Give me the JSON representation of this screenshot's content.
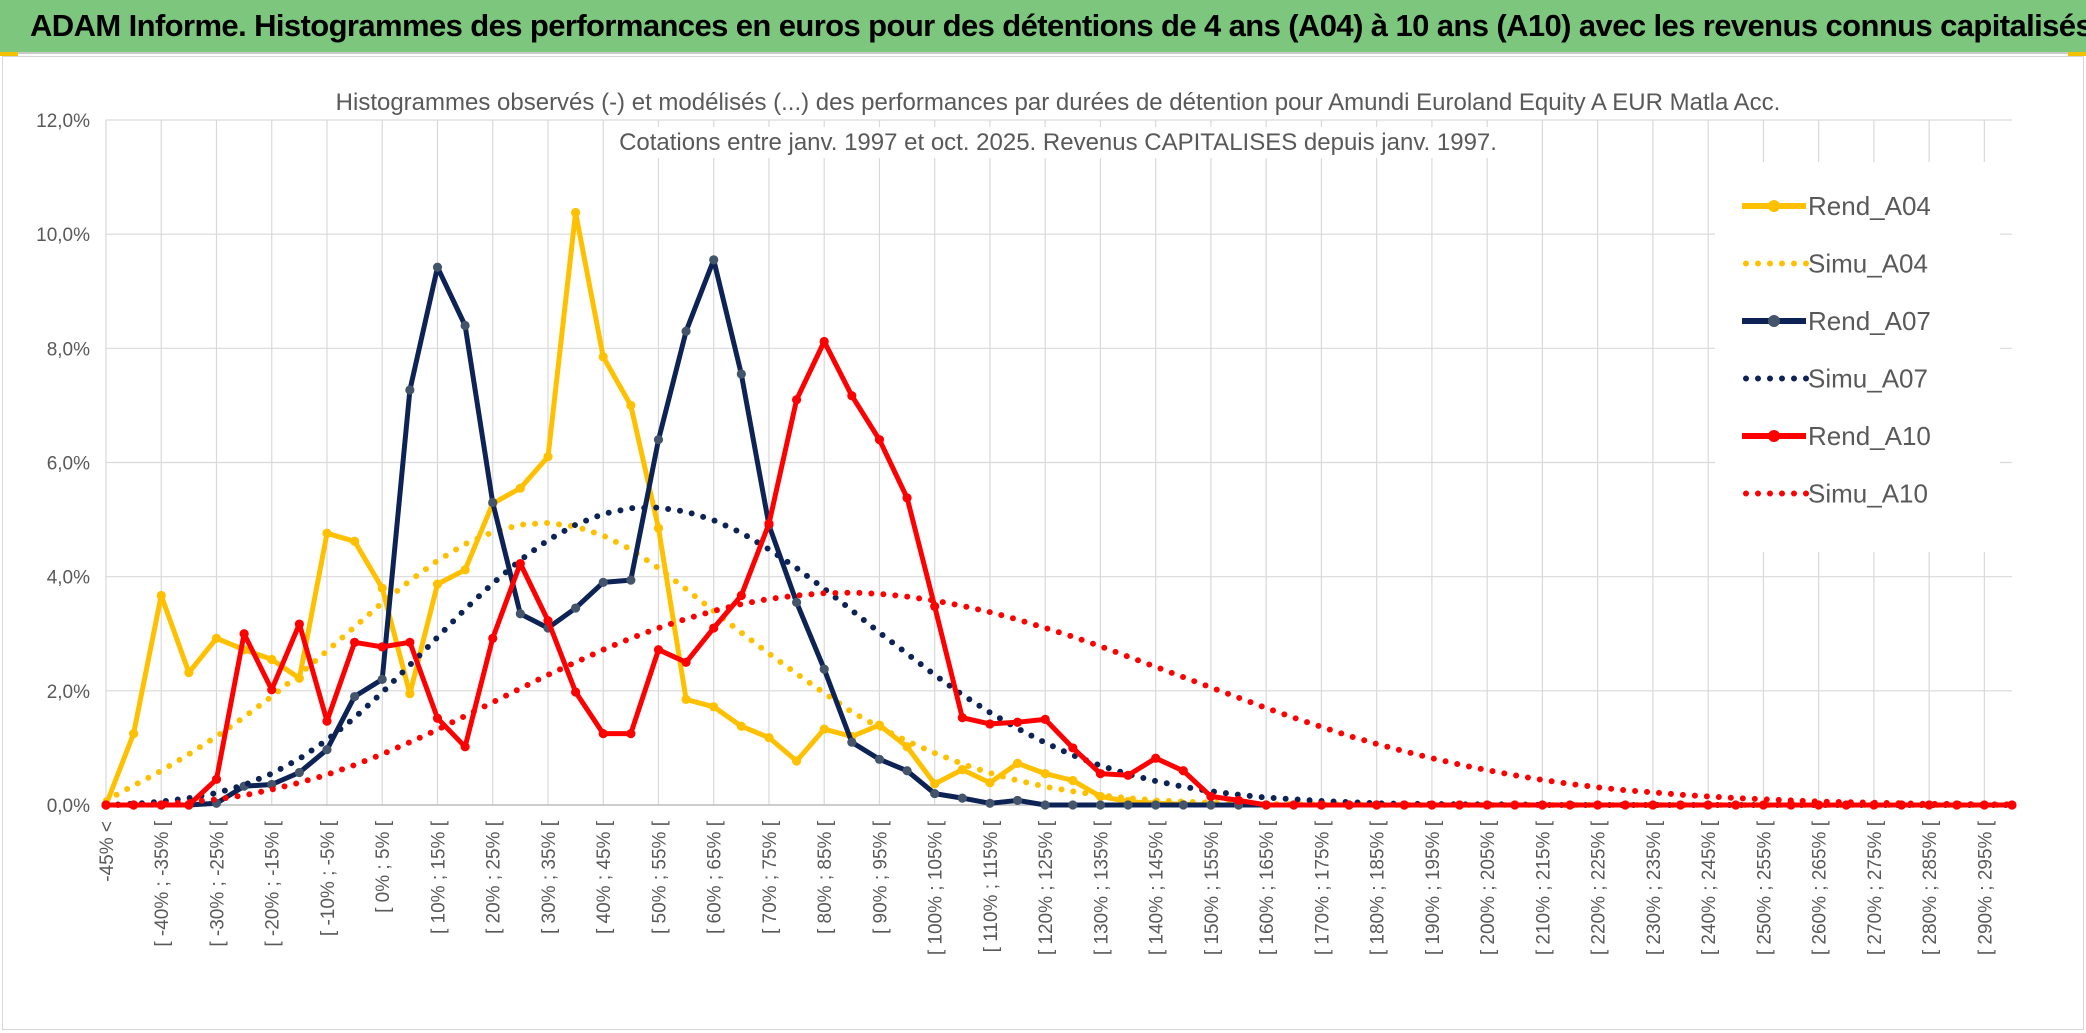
{
  "banner": {
    "title": "ADAM Informe. Histogrammes des performances en euros pour des détentions de 4 ans (A04) à 10 ans (A10) avec les revenus connus capitalisés"
  },
  "colors": {
    "banner": "#7dc67e",
    "A04": "#ffc000",
    "A07": "#0d2356",
    "A10": "#ff0000",
    "grid": "#d9d9d9",
    "text": "#595959"
  },
  "chart_data": {
    "type": "line",
    "title": "Histogrammes observés (-) et modélisés (...) des performances par durées de détention pour Amundi Euroland Equity A EUR Matla Acc.",
    "subtitle": "Cotations entre janv. 1997 et oct. 2025. Revenus CAPITALISES depuis janv. 1997.",
    "ylim": [
      0,
      12
    ],
    "yticks": [
      "0,0%",
      "2,0%",
      "4,0%",
      "6,0%",
      "8,0%",
      "10,0%",
      "12,0%"
    ],
    "grid": true,
    "legend_position": "right",
    "x_tick_labels": [
      "-45% <",
      "[ -40% ; -35% [",
      "[ -30% ; -25% [",
      "[ -20% ; -15% [",
      "[ -10% ; -5% [",
      "[ 0% ; 5% [",
      "[ 10% ; 15% [",
      "[ 20% ; 25% [",
      "[ 30% ; 35% [",
      "[ 40% ; 45% [",
      "[ 50% ; 55% [",
      "[ 60% ; 65% [",
      "[ 70% ; 75% [",
      "[ 80% ; 85% [",
      "[ 90% ; 95% [",
      "[ 100% ; 105% [",
      "[ 110% ; 115% [",
      "[ 120% ; 125% [",
      "[ 130% ; 135% [",
      "[ 140% ; 145% [",
      "[ 150% ; 155% [",
      "[ 160% ; 165% [",
      "[ 170% ; 175% [",
      "[ 180% ; 185% [",
      "[ 190% ; 195% [",
      "[ 200% ; 205% [",
      "[ 210% ; 215% [",
      "[ 220% ; 225% [",
      "[ 230% ; 235% [",
      "[ 240% ; 245% [",
      "[ 250% ; 255% [",
      "[ 260% ; 265% [",
      "[ 270% ; 275% [",
      "[ 280% ; 285% [",
      "[ 290% ; 295% ["
    ],
    "series": [
      {
        "name": "Rend_A04",
        "style": "solid-markers",
        "color": "#ffc000",
        "values": [
          0,
          1.25,
          3.67,
          2.32,
          2.92,
          2.72,
          2.55,
          2.22,
          4.76,
          4.62,
          3.8,
          1.95,
          3.87,
          4.12,
          5.28,
          5.55,
          6.1,
          10.38,
          7.85,
          7.0,
          4.85,
          1.85,
          1.72,
          1.38,
          1.18,
          0.77,
          1.33,
          1.2,
          1.4,
          1.02,
          0.37,
          0.62,
          0.39,
          0.73,
          0.55,
          0.43,
          0.15,
          0.06,
          0.03,
          0.01,
          0,
          0,
          0
        ]
      },
      {
        "name": "Simu_A04",
        "style": "dotted",
        "color": "#ffc000",
        "values": [
          0.08,
          0.34,
          0.6,
          0.89,
          1.2,
          1.54,
          1.9,
          2.29,
          2.7,
          3.12,
          3.54,
          3.93,
          4.28,
          4.57,
          4.78,
          4.91,
          4.94,
          4.88,
          4.72,
          4.48,
          4.15,
          3.78,
          3.4,
          3.02,
          2.65,
          2.3,
          1.96,
          1.63,
          1.36,
          1.12,
          0.91,
          0.72,
          0.56,
          0.43,
          0.32,
          0.24,
          0.17,
          0.12,
          0.08,
          0.06,
          0.04,
          0.03,
          0.02,
          0.01,
          0.01,
          0.01,
          0,
          0,
          0,
          0,
          0,
          0,
          0,
          0,
          0,
          0,
          0,
          0,
          0,
          0,
          0,
          0,
          0,
          0,
          0,
          0,
          0,
          0,
          0,
          0
        ]
      },
      {
        "name": "Rend_A07",
        "style": "solid-markers",
        "color": "#0d2356",
        "values": [
          0,
          0,
          0,
          0,
          0.03,
          0.33,
          0.36,
          0.57,
          0.97,
          1.9,
          2.2,
          7.27,
          9.42,
          8.4,
          5.3,
          3.35,
          3.1,
          3.45,
          3.9,
          3.94,
          6.4,
          8.3,
          9.55,
          7.55,
          4.9,
          3.55,
          2.38,
          1.1,
          0.8,
          0.6,
          0.2,
          0.12,
          0.03,
          0.08,
          0,
          0,
          0,
          0,
          0,
          0,
          0,
          0,
          0,
          0,
          0,
          0,
          0,
          0
        ]
      },
      {
        "name": "Simu_A07",
        "style": "dotted",
        "color": "#0d2356",
        "values": [
          0,
          0.02,
          0.06,
          0.12,
          0.21,
          0.35,
          0.55,
          0.81,
          1.14,
          1.53,
          1.97,
          2.45,
          2.94,
          3.43,
          3.88,
          4.29,
          4.64,
          4.91,
          5.1,
          5.2,
          5.21,
          5.14,
          4.99,
          4.77,
          4.48,
          4.15,
          3.79,
          3.41,
          3.02,
          2.65,
          2.28,
          1.93,
          1.62,
          1.34,
          1.09,
          0.87,
          0.69,
          0.54,
          0.42,
          0.32,
          0.24,
          0.18,
          0.13,
          0.1,
          0.07,
          0.05,
          0.03,
          0.02,
          0.02,
          0.01,
          0.01,
          0.01,
          0,
          0,
          0,
          0,
          0,
          0,
          0,
          0,
          0,
          0,
          0,
          0,
          0,
          0,
          0,
          0,
          0,
          0
        ]
      },
      {
        "name": "Rend_A10",
        "style": "solid-markers",
        "color": "#ff0000",
        "values": [
          0,
          0,
          0,
          0,
          0.45,
          3.0,
          2.02,
          3.17,
          1.47,
          2.85,
          2.77,
          2.85,
          1.52,
          1.02,
          2.92,
          4.23,
          3.23,
          1.98,
          1.25,
          1.25,
          2.72,
          2.5,
          3.1,
          3.67,
          4.93,
          7.1,
          8.12,
          7.17,
          6.4,
          5.38,
          3.48,
          1.53,
          1.42,
          1.45,
          1.5,
          1.0,
          0.55,
          0.52,
          0.82,
          0.6,
          0.15,
          0.08,
          0,
          0,
          0,
          0,
          0,
          0,
          0,
          0,
          0,
          0,
          0,
          0,
          0,
          0,
          0,
          0,
          0,
          0,
          0,
          0,
          0,
          0,
          0,
          0,
          0,
          0,
          0,
          0
        ]
      },
      {
        "name": "Simu_A10",
        "style": "dotted",
        "color": "#ff0000",
        "values": [
          0,
          0,
          0.02,
          0.05,
          0.1,
          0.17,
          0.27,
          0.39,
          0.53,
          0.7,
          0.89,
          1.1,
          1.32,
          1.56,
          1.8,
          2.04,
          2.28,
          2.5,
          2.72,
          2.92,
          3.1,
          3.26,
          3.4,
          3.52,
          3.61,
          3.67,
          3.71,
          3.72,
          3.7,
          3.65,
          3.58,
          3.49,
          3.38,
          3.25,
          3.1,
          2.95,
          2.78,
          2.6,
          2.42,
          2.24,
          2.06,
          1.88,
          1.7,
          1.53,
          1.37,
          1.21,
          1.07,
          0.94,
          0.82,
          0.71,
          0.61,
          0.52,
          0.44,
          0.37,
          0.31,
          0.26,
          0.22,
          0.18,
          0.15,
          0.12,
          0.1,
          0.08,
          0.06,
          0.05,
          0.04,
          0.03,
          0.02,
          0.02,
          0.01,
          0.01
        ]
      }
    ]
  }
}
